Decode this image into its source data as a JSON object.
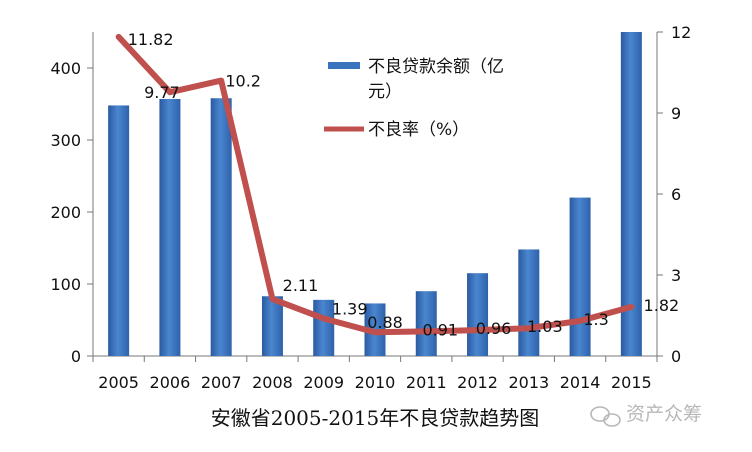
{
  "chart_data": {
    "type": "bar+line",
    "title": "安徽省2005-2015年不良贷款趋势图",
    "categories": [
      "2005",
      "2006",
      "2007",
      "2008",
      "2009",
      "2010",
      "2011",
      "2012",
      "2013",
      "2014",
      "2015"
    ],
    "series": [
      {
        "name": "不良贷款余额（亿元）",
        "type": "bar",
        "axis": "left",
        "color": "#3a73bd",
        "values": [
          348,
          357,
          358,
          83,
          78,
          73,
          90,
          115,
          148,
          220,
          450
        ]
      },
      {
        "name": "不良率（%）",
        "type": "line",
        "axis": "right",
        "color": "#c0504d",
        "values": [
          11.82,
          9.77,
          10.2,
          2.11,
          1.39,
          0.88,
          0.91,
          0.96,
          1.03,
          1.3,
          1.82
        ],
        "labels": [
          "11.82",
          "9.77",
          "10.2",
          "2.11",
          "1.39",
          "0.88",
          "0.91",
          "0.96",
          "1.03",
          "1.3",
          "1.82"
        ]
      }
    ],
    "y_left": {
      "ylim": [
        0,
        450
      ],
      "ticks": [
        0,
        100,
        200,
        300,
        400
      ]
    },
    "y_right": {
      "ylim": [
        0,
        12
      ],
      "ticks": [
        0,
        3,
        6,
        9,
        12
      ]
    },
    "legend": {
      "placement": "top-center",
      "bar_label_line1": "不良贷款余额（亿",
      "bar_label_line2": "元）",
      "line_label": "不良率（%）"
    },
    "grid": false
  },
  "watermark": {
    "text": "资产众筹",
    "icon": "wechat-icon"
  }
}
